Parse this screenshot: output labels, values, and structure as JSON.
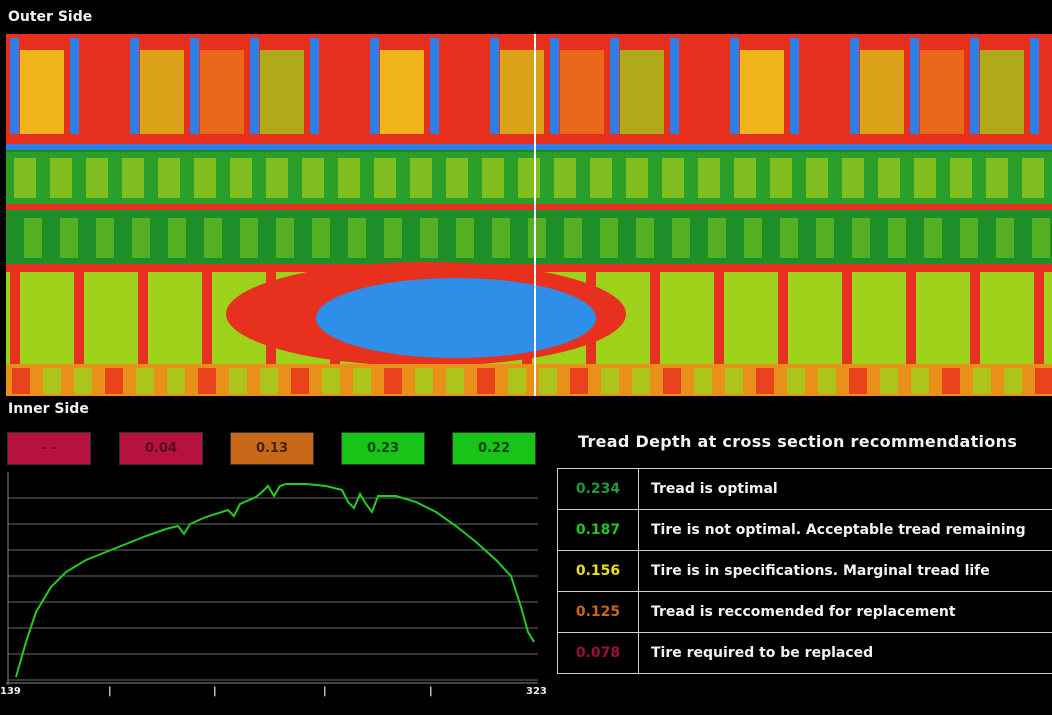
{
  "labels": {
    "outer": "Outer Side",
    "inner": "Inner Side"
  },
  "badges": [
    {
      "value": "- -",
      "color": "#b5123f",
      "text_color": "#6a0a20"
    },
    {
      "value": "0.04",
      "color": "#b5123f",
      "text_color": "#5c0a1f"
    },
    {
      "value": "0.13",
      "color": "#c8691a",
      "text_color": "#4a2006"
    },
    {
      "value": "0.23",
      "color": "#19c419",
      "text_color": "#07450a"
    },
    {
      "value": "0.22",
      "color": "#19c419",
      "text_color": "#07450a"
    }
  ],
  "profile_axis": {
    "min_label": "139",
    "max_label": "323"
  },
  "recommendations": {
    "title": "Tread Depth at cross section recommendations",
    "rows": [
      {
        "value": "0.234",
        "text": "Tread is optimal",
        "color": "#1f9a3a"
      },
      {
        "value": "0.187",
        "text": "Tire is not optimal. Acceptable tread remaining",
        "color": "#22c822"
      },
      {
        "value": "0.156",
        "text": "Tire is in specifications. Marginal tread life",
        "color": "#e8e020"
      },
      {
        "value": "0.125",
        "text": "Tread is reccomended for replacement",
        "color": "#c8691a"
      },
      {
        "value": "0.078",
        "text": "Tire required to be replaced",
        "color": "#9a1040"
      }
    ]
  }
}
